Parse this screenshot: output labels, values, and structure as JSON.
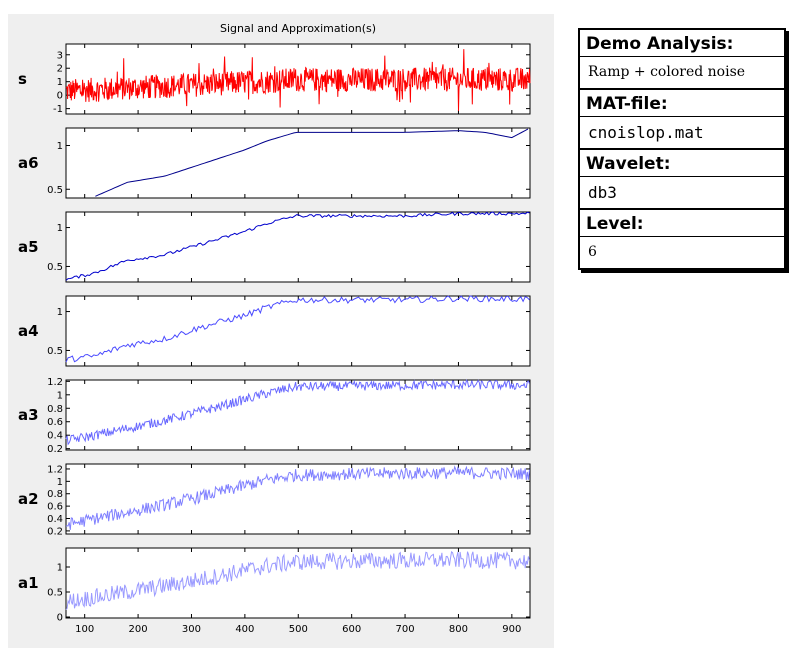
{
  "figure": {
    "title": "Signal and Approximation(s)"
  },
  "info": {
    "blocks": [
      {
        "heading": "Demo Analysis:",
        "value": "Ramp + colored noise",
        "style": "serif"
      },
      {
        "heading": "MAT-file:",
        "value": "cnoislop.mat",
        "style": "mono"
      },
      {
        "heading": "Wavelet:",
        "value": "db3",
        "style": "mono"
      },
      {
        "heading": "Level:",
        "value": "6",
        "style": "serif"
      }
    ]
  },
  "chart_data": {
    "type": "line",
    "title": "Signal and Approximation(s)",
    "x_range": [
      65,
      934
    ],
    "x_ticks": [
      100,
      200,
      300,
      400,
      500,
      600,
      700,
      800,
      900
    ],
    "grid": false,
    "panels": [
      {
        "label": "s",
        "color": "#ff0000",
        "ylim": [
          -1.4,
          3.8
        ],
        "yticks": [
          "-1",
          "0",
          "1",
          "2",
          "3"
        ],
        "yvals": [
          -1,
          0,
          1,
          2,
          3
        ],
        "noise": 0.9,
        "anchors": {
          "x": [
            65,
            500,
            934
          ],
          "y": [
            0.3,
            1.15,
            1.15
          ]
        }
      },
      {
        "label": "a6",
        "color": "#00008b",
        "ylim": [
          0.4,
          1.2
        ],
        "yticks": [
          "0.5",
          "1"
        ],
        "yvals": [
          0.5,
          1
        ],
        "noise": 0.0,
        "anchors": {
          "x": [
            120,
            180,
            250,
            300,
            350,
            400,
            440,
            495,
            600,
            700,
            800,
            850,
            900,
            934
          ],
          "y": [
            0.42,
            0.58,
            0.65,
            0.75,
            0.85,
            0.95,
            1.05,
            1.15,
            1.15,
            1.15,
            1.17,
            1.15,
            1.09,
            1.2
          ]
        }
      },
      {
        "label": "a5",
        "color": "#0000cd",
        "ylim": [
          0.3,
          1.2
        ],
        "yticks": [
          "0.5",
          "1"
        ],
        "yvals": [
          0.5,
          1
        ],
        "noise": 0.02,
        "anchors": {
          "x": [
            65,
            120,
            180,
            250,
            300,
            350,
            400,
            440,
            495,
            600,
            700,
            800,
            934
          ],
          "y": [
            0.33,
            0.42,
            0.58,
            0.65,
            0.75,
            0.85,
            0.95,
            1.05,
            1.15,
            1.15,
            1.15,
            1.18,
            1.18
          ]
        }
      },
      {
        "label": "a4",
        "color": "#4b4bff",
        "ylim": [
          0.3,
          1.2
        ],
        "yticks": [
          "0.5",
          "1"
        ],
        "yvals": [
          0.5,
          1
        ],
        "noise": 0.04,
        "anchors": {
          "x": [
            65,
            120,
            180,
            250,
            300,
            350,
            400,
            440,
            495,
            600,
            700,
            800,
            934
          ],
          "y": [
            0.38,
            0.43,
            0.57,
            0.65,
            0.76,
            0.86,
            0.95,
            1.05,
            1.15,
            1.15,
            1.15,
            1.17,
            1.16
          ]
        }
      },
      {
        "label": "a3",
        "color": "#6a6aff",
        "ylim": [
          0.18,
          1.22
        ],
        "yticks": [
          "0.2",
          "0.4",
          "0.6",
          "0.8",
          "1",
          "1.2"
        ],
        "yvals": [
          0.2,
          0.4,
          0.6,
          0.8,
          1,
          1.2
        ],
        "noise": 0.07,
        "anchors": {
          "x": [
            65,
            120,
            180,
            250,
            300,
            350,
            400,
            440,
            495,
            600,
            700,
            800,
            934
          ],
          "y": [
            0.32,
            0.4,
            0.5,
            0.62,
            0.72,
            0.82,
            0.93,
            1.02,
            1.12,
            1.13,
            1.14,
            1.15,
            1.14
          ]
        }
      },
      {
        "label": "a2",
        "color": "#8080ff",
        "ylim": [
          0.15,
          1.28
        ],
        "yticks": [
          "0.2",
          "0.4",
          "0.6",
          "0.8",
          "1",
          "1.2"
        ],
        "yvals": [
          0.2,
          0.4,
          0.6,
          0.8,
          1,
          1.2
        ],
        "noise": 0.1,
        "anchors": {
          "x": [
            65,
            120,
            180,
            250,
            300,
            350,
            400,
            440,
            495,
            600,
            700,
            800,
            934
          ],
          "y": [
            0.3,
            0.4,
            0.5,
            0.62,
            0.72,
            0.82,
            0.93,
            1.02,
            1.1,
            1.12,
            1.13,
            1.14,
            1.12
          ]
        }
      },
      {
        "label": "a1",
        "color": "#9a9aff",
        "ylim": [
          -0.02,
          1.38
        ],
        "yticks": [
          "0",
          "0.5",
          "1"
        ],
        "yvals": [
          0,
          0.5,
          1
        ],
        "noise": 0.17,
        "anchors": {
          "x": [
            65,
            120,
            180,
            250,
            300,
            350,
            400,
            440,
            495,
            600,
            700,
            800,
            934
          ],
          "y": [
            0.3,
            0.4,
            0.5,
            0.62,
            0.72,
            0.82,
            0.93,
            1.02,
            1.1,
            1.12,
            1.13,
            1.14,
            1.12
          ]
        }
      }
    ]
  }
}
